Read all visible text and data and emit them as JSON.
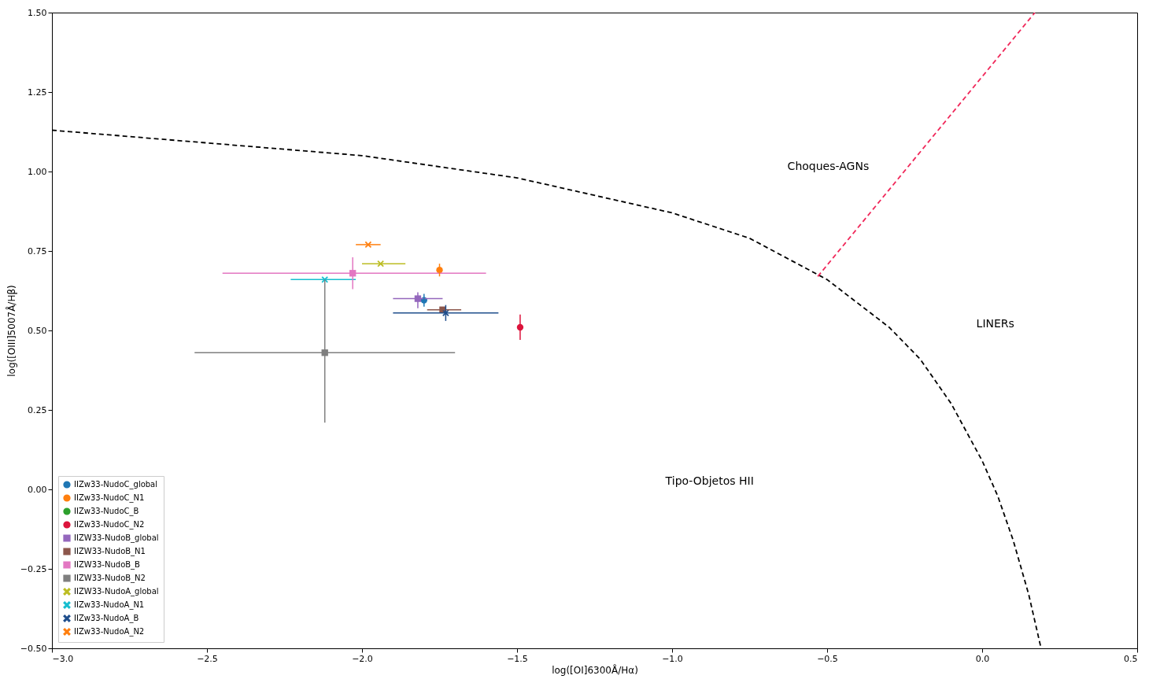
{
  "chart_data": {
    "type": "scatter",
    "xlabel": "log([OI]6300Å/Hα)",
    "ylabel": "log([OIII]5007Å/Hβ)",
    "xlim": [
      -3.0,
      0.5
    ],
    "ylim": [
      -0.5,
      1.5
    ],
    "xticks": [
      {
        "value": -3.0,
        "label": "−3.0"
      },
      {
        "value": -2.5,
        "label": "−2.5"
      },
      {
        "value": -2.0,
        "label": "−2.0"
      },
      {
        "value": -1.5,
        "label": "−1.5"
      },
      {
        "value": -1.0,
        "label": "−1.0"
      },
      {
        "value": -0.5,
        "label": "−0.5"
      },
      {
        "value": 0.0,
        "label": "0.0"
      },
      {
        "value": 0.5,
        "label": "0.5"
      }
    ],
    "yticks": [
      {
        "value": -0.5,
        "label": "−0.50"
      },
      {
        "value": -0.25,
        "label": "−0.25"
      },
      {
        "value": 0.0,
        "label": "0.00"
      },
      {
        "value": 0.25,
        "label": "0.25"
      },
      {
        "value": 0.5,
        "label": "0.50"
      },
      {
        "value": 0.75,
        "label": "0.75"
      },
      {
        "value": 1.0,
        "label": "1.00"
      },
      {
        "value": 1.25,
        "label": "1.25"
      },
      {
        "value": 1.5,
        "label": "1.50"
      }
    ],
    "grid": false,
    "legend": "bottom left",
    "annotations": [
      "Choques-AGNs",
      "LINERs",
      "Tipo-Objetos HII"
    ],
    "series": [
      {
        "name": "IIZw33-NudoC_global",
        "marker": "circle",
        "color": "#1f77b4",
        "x": [
          -1.8
        ],
        "values": [
          0.595
        ],
        "errors": [
          [
            0.575,
            0.615
          ]
        ]
      },
      {
        "name": "IIZw33-NudoC_N1",
        "marker": "circle",
        "color": "#ff7f0e",
        "x": [
          -1.75
        ],
        "values": [
          0.69
        ],
        "errors": [
          [
            0.67,
            0.71
          ]
        ]
      },
      {
        "name": "IIZw33-NudoC_B",
        "marker": "circle",
        "color": "#2ca02c",
        "x": [
          null
        ],
        "values": [
          null
        ]
      },
      {
        "name": "IIZw33-NudoC_N2",
        "marker": "circle",
        "color": "#dc143c",
        "x": [
          -1.49
        ],
        "values": [
          0.51
        ],
        "errors": [
          [
            0.47,
            0.55
          ]
        ]
      },
      {
        "name": "IIZW33-NudoB_global",
        "marker": "square",
        "color": "#9467bd",
        "x": [
          -1.82
        ],
        "values": [
          0.6
        ],
        "errors": [
          [
            0.57,
            0.62
          ]
        ],
        "xerrors": [
          [
            -1.9,
            -1.74
          ]
        ]
      },
      {
        "name": "IIZW33-NudoB_N1",
        "marker": "square",
        "color": "#8c564b",
        "x": [
          -1.74
        ],
        "values": [
          0.565
        ],
        "xerrors": [
          [
            -1.79,
            -1.68
          ]
        ]
      },
      {
        "name": "IIZW33-NudoB_B",
        "marker": "square",
        "color": "#e377c2",
        "x": [
          -2.03
        ],
        "values": [
          0.68
        ],
        "errors": [
          [
            0.63,
            0.73
          ]
        ],
        "xerrors": [
          [
            -2.45,
            -1.6
          ]
        ]
      },
      {
        "name": "IIZW33-NudoB_N2",
        "marker": "square",
        "color": "#7f7f7f",
        "x": [
          -2.12
        ],
        "values": [
          0.43
        ],
        "errors": [
          [
            0.21,
            0.66
          ]
        ],
        "xerrors": [
          [
            -2.54,
            -1.7
          ]
        ]
      },
      {
        "name": "IIZW33-NudoA_global",
        "marker": "cross",
        "color": "#bcbd22",
        "x": [
          -1.94
        ],
        "values": [
          0.71
        ],
        "xerrors": [
          [
            -2.0,
            -1.86
          ]
        ]
      },
      {
        "name": "IIZw33-NudoA_N1",
        "marker": "cross",
        "color": "#17becf",
        "x": [
          -2.12
        ],
        "values": [
          0.66
        ],
        "xerrors": [
          [
            -2.23,
            -2.02
          ]
        ]
      },
      {
        "name": "IIZw33-NudoA_B",
        "marker": "cross",
        "color": "#1f4e8c",
        "x": [
          -1.73
        ],
        "values": [
          0.555
        ],
        "errors": [
          [
            0.53,
            0.58
          ]
        ],
        "xerrors": [
          [
            -1.9,
            -1.56
          ]
        ]
      },
      {
        "name": "IIZw33-NudoA_N2",
        "marker": "cross",
        "color": "#ff7f0e",
        "x": [
          -1.98
        ],
        "values": [
          0.77
        ],
        "xerrors": [
          [
            -2.02,
            -1.94
          ]
        ]
      },
      {
        "type": "line",
        "line_style": "dashed",
        "color": "#000000",
        "x": [
          -3.0,
          -2.5,
          -2.0,
          -1.5,
          -1.0,
          -0.75,
          -0.5,
          -0.3,
          -0.2,
          -0.1,
          0.0,
          0.05,
          0.1,
          0.15,
          0.19
        ],
        "values": [
          1.13,
          1.09,
          1.05,
          0.98,
          0.87,
          0.79,
          0.66,
          0.51,
          0.41,
          0.27,
          0.09,
          -0.02,
          -0.16,
          -0.33,
          -0.5
        ]
      },
      {
        "type": "line",
        "line_style": "dashed",
        "color": "#f0285a",
        "x": [
          -0.53,
          0.17
        ],
        "values": [
          0.67,
          1.5
        ]
      }
    ]
  }
}
